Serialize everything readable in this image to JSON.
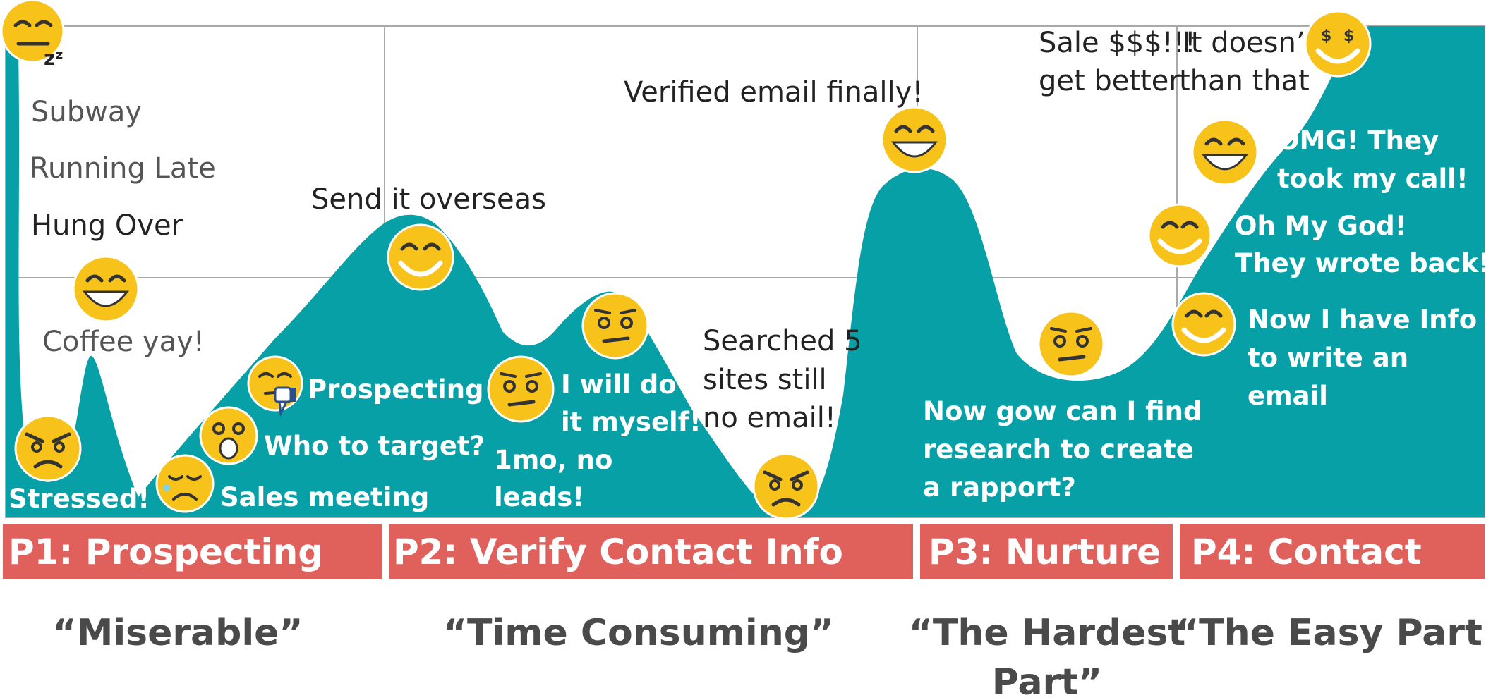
{
  "colors": {
    "area": "#06a0a6",
    "phase_bar": "#e0605c",
    "grid": "#a9a9a9",
    "emoji_face": "#f7c21a",
    "emoji_outline": "#ffffff"
  },
  "top_left_labels": {
    "zzz": "zᶻ",
    "subway": "Subway",
    "running_late": "Running Late",
    "hung_over": "Hung Over",
    "coffee": "Coffee yay!"
  },
  "annotations": {
    "send_overseas": "Send it overseas",
    "verified_email": "Verified email finally!",
    "sale_line1": "Sale $$$!!!",
    "sale_line2": "get better",
    "doesnt_line1": "It doesn’t",
    "doesnt_line2": "than that",
    "searched_line1": "Searched 5",
    "searched_line2": "sites still",
    "searched_line3": "no email!"
  },
  "white_labels": {
    "stressed": "Stressed!",
    "sales_meeting": "Sales meeting",
    "who_to_target": "Who to target?",
    "prospecting": "Prospecting",
    "one_mo_line1": "1mo, no",
    "one_mo_line2": "leads!",
    "myself_line1": "I will do",
    "myself_line2": "it myself!",
    "research_line1": "Now gow can I find",
    "research_line2": "research to create",
    "research_line3": "a rapport?",
    "info_line1": "Now I have Info",
    "info_line2": "to  write an",
    "info_line3": "email",
    "wrote_line1": "Oh My God!",
    "wrote_line2": "They wrote back!",
    "call_line1": "OMG! They",
    "call_line2": "took my call!"
  },
  "phases": [
    {
      "label": "P1: Prospecting",
      "quote_line1": "“Miserable”",
      "quote_line2": ""
    },
    {
      "label": "P2: Verify Contact Info",
      "quote_line1": "“Time Consuming”",
      "quote_line2": ""
    },
    {
      "label": "P3: Nurture",
      "quote_line1": "“The Hardest",
      "quote_line2": "Part”"
    },
    {
      "label": "P4: Contact",
      "quote_line1": "“The Easy Part”",
      "quote_line2": ""
    }
  ],
  "emojis": [
    {
      "name": "sleepy",
      "mood": "sleeping"
    },
    {
      "name": "coffee",
      "mood": "grinning"
    },
    {
      "name": "stressed",
      "mood": "angry"
    },
    {
      "name": "sales-meeting",
      "mood": "crying"
    },
    {
      "name": "who-to-target",
      "mood": "shocked"
    },
    {
      "name": "prospecting",
      "mood": "thumbs-down"
    },
    {
      "name": "overseas",
      "mood": "happy"
    },
    {
      "name": "one-month",
      "mood": "meh"
    },
    {
      "name": "myself",
      "mood": "meh"
    },
    {
      "name": "searched",
      "mood": "angry"
    },
    {
      "name": "verified",
      "mood": "grinning"
    },
    {
      "name": "research",
      "mood": "meh"
    },
    {
      "name": "info",
      "mood": "happy"
    },
    {
      "name": "wrote-back",
      "mood": "happy"
    },
    {
      "name": "took-call",
      "mood": "grinning"
    },
    {
      "name": "sale",
      "mood": "money-eyes"
    }
  ]
}
